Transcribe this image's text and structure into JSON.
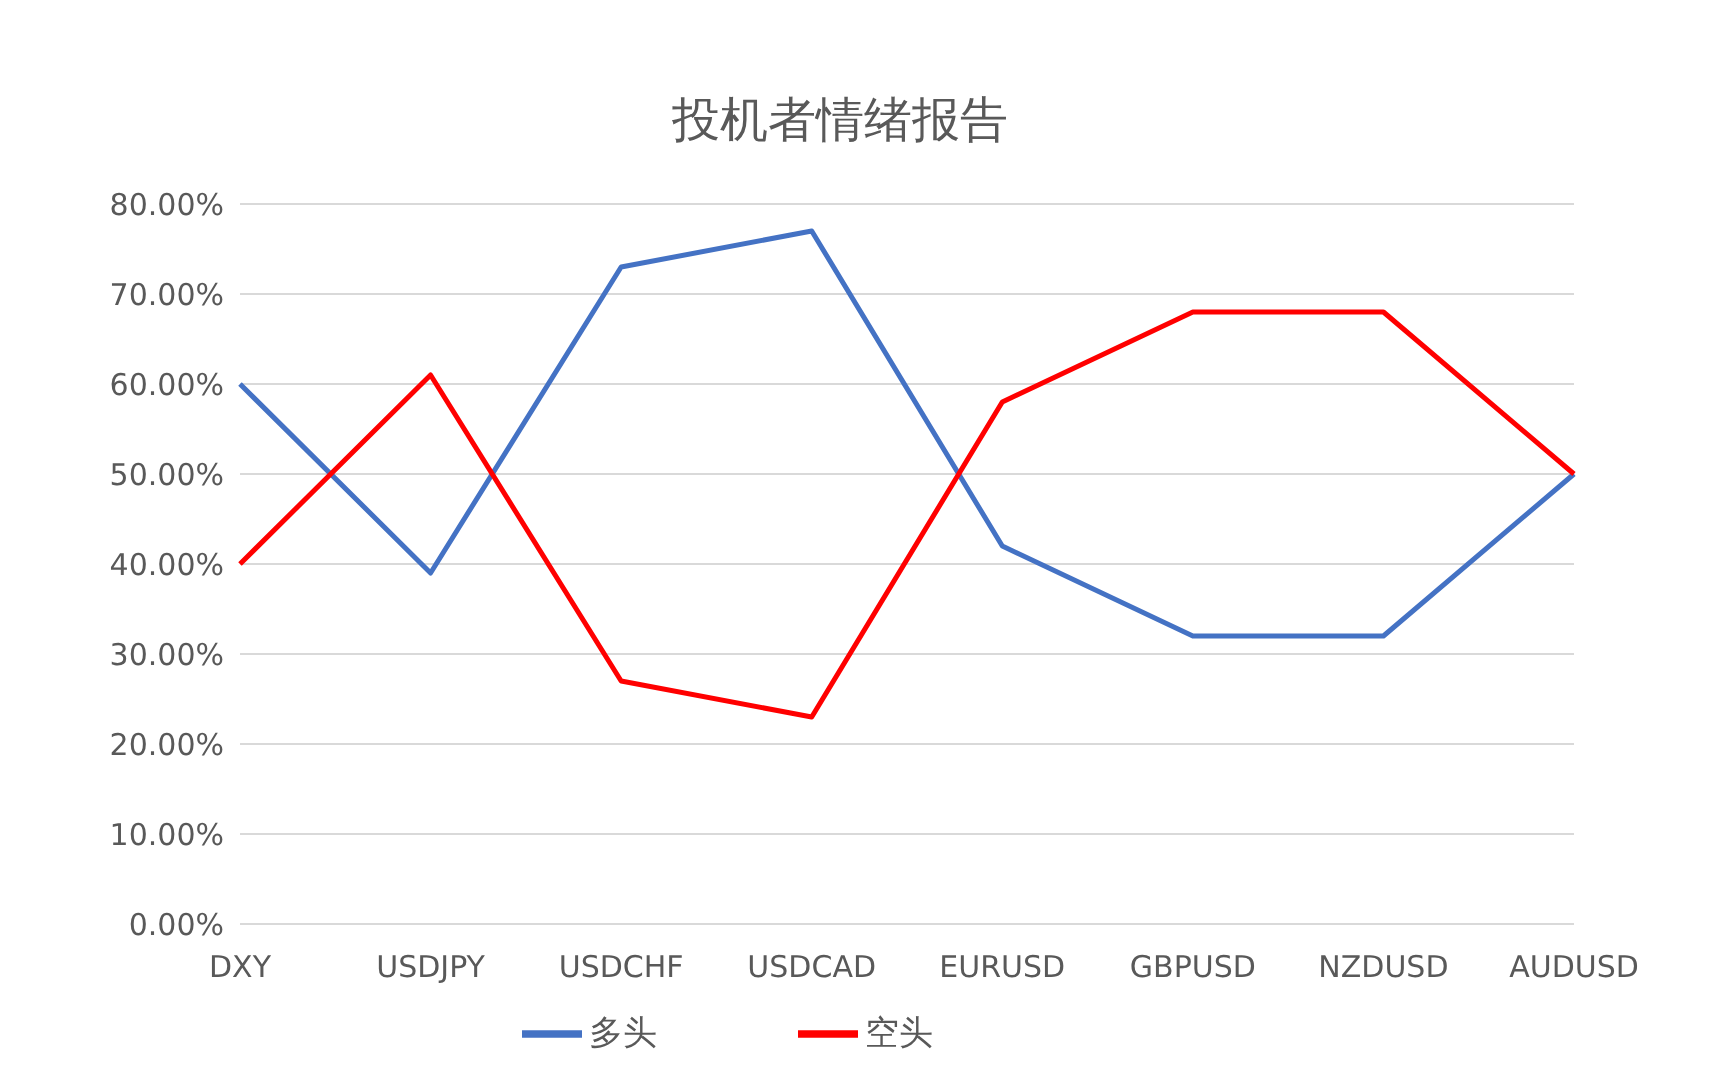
{
  "chart_data": {
    "type": "line",
    "title": "投机者情绪报告",
    "categories": [
      "DXY",
      "USDJPY",
      "USDCHF",
      "USDCAD",
      "EURUSD",
      "GBPUSD",
      "NZDUSD",
      "AUDUSD"
    ],
    "series": [
      {
        "name": "多头",
        "color": "#4472c4",
        "values": [
          60,
          39,
          73,
          77,
          42,
          32,
          32,
          50
        ]
      },
      {
        "name": "空头",
        "color": "#ff0000",
        "values": [
          40,
          61,
          27,
          23,
          58,
          68,
          68,
          50
        ]
      }
    ],
    "ylim": [
      0,
      80
    ],
    "yticks": [
      {
        "value": 0,
        "label": "0.00%"
      },
      {
        "value": 10,
        "label": "10.00%"
      },
      {
        "value": 20,
        "label": "20.00%"
      },
      {
        "value": 30,
        "label": "30.00%"
      },
      {
        "value": 40,
        "label": "40.00%"
      },
      {
        "value": 50,
        "label": "50.00%"
      },
      {
        "value": 60,
        "label": "60.00%"
      },
      {
        "value": 70,
        "label": "70.00%"
      },
      {
        "value": 80,
        "label": "80.00%"
      }
    ],
    "grid": "y",
    "legend": "bottom",
    "marker": "none",
    "line_style": "solid"
  }
}
